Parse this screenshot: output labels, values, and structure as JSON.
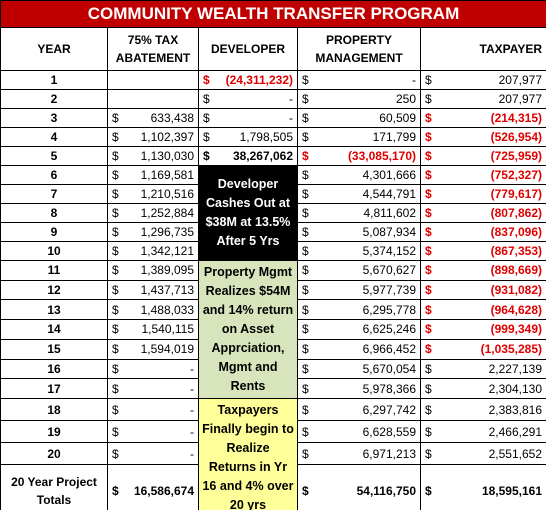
{
  "title": "COMMUNITY WEALTH TRANSFER PROGRAM",
  "headers": [
    "YEAR",
    "75% TAX ABATEMENT",
    "DEVELOPER",
    "PROPERTY MANAGEMENT",
    "TAXPAYER"
  ],
  "rows": [
    {
      "year": "1",
      "tax": null,
      "developer": {
        "cur": "$",
        "amt": "(24,311,232)",
        "red": true
      },
      "property": {
        "cur": "$",
        "amt": "-"
      },
      "taxpayer": {
        "cur": "$",
        "amt": "207,977"
      }
    },
    {
      "year": "2",
      "tax": null,
      "developer": {
        "cur": "$",
        "amt": "-"
      },
      "property": {
        "cur": "$",
        "amt": "250"
      },
      "taxpayer": {
        "cur": "$",
        "amt": "207,977"
      }
    },
    {
      "year": "3",
      "tax": {
        "cur": "$",
        "amt": "633,438"
      },
      "developer": {
        "cur": "$",
        "amt": "-"
      },
      "property": {
        "cur": "$",
        "amt": "60,509"
      },
      "taxpayer": {
        "cur": "$",
        "amt": "(214,315)",
        "red": true
      }
    },
    {
      "year": "4",
      "tax": {
        "cur": "$",
        "amt": "1,102,397"
      },
      "developer": {
        "cur": "$",
        "amt": "1,798,505"
      },
      "property": {
        "cur": "$",
        "amt": "171,799"
      },
      "taxpayer": {
        "cur": "$",
        "amt": "(526,954)",
        "red": true
      }
    },
    {
      "year": "5",
      "tax": {
        "cur": "$",
        "amt": "1,130,030"
      },
      "developer": {
        "cur": "$",
        "amt": "38,267,062",
        "bold": true
      },
      "property": {
        "cur": "$",
        "amt": "(33,085,170)",
        "red": true
      },
      "taxpayer": {
        "cur": "$",
        "amt": "(725,959)",
        "red": true
      }
    },
    {
      "year": "6",
      "tax": {
        "cur": "$",
        "amt": "1,169,581"
      },
      "property": {
        "cur": "$",
        "amt": "4,301,666"
      },
      "taxpayer": {
        "cur": "$",
        "amt": "(752,327)",
        "red": true
      }
    },
    {
      "year": "7",
      "tax": {
        "cur": "$",
        "amt": "1,210,516"
      },
      "property": {
        "cur": "$",
        "amt": "4,544,791"
      },
      "taxpayer": {
        "cur": "$",
        "amt": "(779,617)",
        "red": true
      }
    },
    {
      "year": "8",
      "tax": {
        "cur": "$",
        "amt": "1,252,884"
      },
      "property": {
        "cur": "$",
        "amt": "4,811,602"
      },
      "taxpayer": {
        "cur": "$",
        "amt": "(807,862)",
        "red": true
      }
    },
    {
      "year": "9",
      "tax": {
        "cur": "$",
        "amt": "1,296,735"
      },
      "property": {
        "cur": "$",
        "amt": "5,087,934"
      },
      "taxpayer": {
        "cur": "$",
        "amt": "(837,096)",
        "red": true
      }
    },
    {
      "year": "10",
      "tax": {
        "cur": "$",
        "amt": "1,342,121"
      },
      "property": {
        "cur": "$",
        "amt": "5,374,152"
      },
      "taxpayer": {
        "cur": "$",
        "amt": "(867,353)",
        "red": true
      }
    },
    {
      "year": "11",
      "tax": {
        "cur": "$",
        "amt": "1,389,095"
      },
      "property": {
        "cur": "$",
        "amt": "5,670,627"
      },
      "taxpayer": {
        "cur": "$",
        "amt": "(898,669)",
        "red": true
      }
    },
    {
      "year": "12",
      "tax": {
        "cur": "$",
        "amt": "1,437,713"
      },
      "property": {
        "cur": "$",
        "amt": "5,977,739"
      },
      "taxpayer": {
        "cur": "$",
        "amt": "(931,082)",
        "red": true
      }
    },
    {
      "year": "13",
      "tax": {
        "cur": "$",
        "amt": "1,488,033"
      },
      "property": {
        "cur": "$",
        "amt": "6,295,778"
      },
      "taxpayer": {
        "cur": "$",
        "amt": "(964,628)",
        "red": true
      }
    },
    {
      "year": "14",
      "tax": {
        "cur": "$",
        "amt": "1,540,115"
      },
      "property": {
        "cur": "$",
        "amt": "6,625,246"
      },
      "taxpayer": {
        "cur": "$",
        "amt": "(999,349)",
        "red": true
      }
    },
    {
      "year": "15",
      "tax": {
        "cur": "$",
        "amt": "1,594,019"
      },
      "property": {
        "cur": "$",
        "amt": "6,966,452"
      },
      "taxpayer": {
        "cur": "$",
        "amt": "(1,035,285)",
        "red": true
      }
    },
    {
      "year": "16",
      "tax": {
        "cur": "$",
        "amt": "-"
      },
      "property": {
        "cur": "$",
        "amt": "5,670,054"
      },
      "taxpayer": {
        "cur": "$",
        "amt": "2,227,139"
      }
    },
    {
      "year": "17",
      "tax": {
        "cur": "$",
        "amt": "-"
      },
      "property": {
        "cur": "$",
        "amt": "5,978,366"
      },
      "taxpayer": {
        "cur": "$",
        "amt": "2,304,130"
      }
    },
    {
      "year": "18",
      "tax": {
        "cur": "$",
        "amt": "-"
      },
      "property": {
        "cur": "$",
        "amt": "6,297,742"
      },
      "taxpayer": {
        "cur": "$",
        "amt": "2,383,816"
      }
    },
    {
      "year": "19",
      "tax": {
        "cur": "$",
        "amt": "-"
      },
      "property": {
        "cur": "$",
        "amt": "6,628,559"
      },
      "taxpayer": {
        "cur": "$",
        "amt": "2,466,291"
      }
    },
    {
      "year": "20",
      "tax": {
        "cur": "$",
        "amt": "-"
      },
      "property": {
        "cur": "$",
        "amt": "6,971,213"
      },
      "taxpayer": {
        "cur": "$",
        "amt": "2,551,652"
      }
    }
  ],
  "totals": {
    "label": "20 Year Project Totals",
    "tax": {
      "cur": "$",
      "amt": "16,586,674"
    },
    "property": {
      "cur": "$",
      "amt": "54,116,750"
    },
    "taxpayer": {
      "cur": "$",
      "amt": "18,595,161"
    }
  },
  "notes": [
    "Developer Cashes Out at $38M at 13.5% After 5 Yrs",
    "Property Mgmt Realizes $54M and 14% return on Asset Apprciation, Mgmt and Rents",
    "Taxpayers Finally begin to Realize Returns in Yr 16 and 4% over 20 yrs"
  ]
}
